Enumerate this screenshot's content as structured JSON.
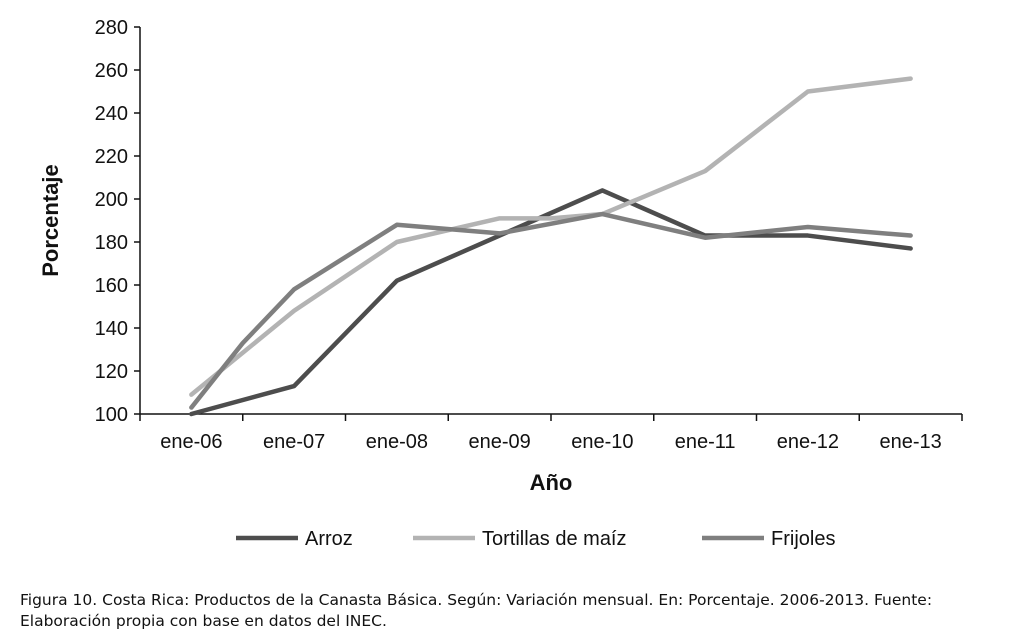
{
  "chart_data": {
    "type": "line",
    "title": "",
    "xlabel": "Año",
    "ylabel": "Porcentaje",
    "categories": [
      "ene-06",
      "ene-07",
      "ene-08",
      "ene-09",
      "ene-10",
      "ene-11",
      "ene-12",
      "ene-13"
    ],
    "ylim": [
      100,
      280
    ],
    "yticks": [
      100,
      120,
      140,
      160,
      180,
      200,
      220,
      240,
      260,
      280
    ],
    "grid": false,
    "legend_position": "bottom",
    "series": [
      {
        "name": "Arroz",
        "color": "#4d4d4d",
        "x": [
          0,
          1,
          2,
          3,
          4,
          5,
          6,
          7
        ],
        "values": [
          100,
          113,
          162,
          183,
          204,
          183,
          183,
          177
        ]
      },
      {
        "name": "Tortillas de maíz",
        "color": "#b3b3b3",
        "x": [
          0,
          1,
          2,
          3,
          3.5,
          4,
          4.5,
          5,
          6,
          7
        ],
        "values": [
          109,
          148,
          180,
          191,
          191,
          193,
          203,
          213,
          250,
          256
        ]
      },
      {
        "name": "Frijoles",
        "color": "#7f7f7f",
        "x": [
          0,
          0.5,
          1,
          2,
          3,
          4,
          5,
          6,
          7
        ],
        "values": [
          103,
          133,
          158,
          188,
          184,
          193,
          182,
          187,
          183
        ]
      }
    ]
  },
  "caption": {
    "line1": "Figura 10. Costa Rica: Productos de la Canasta Básica. Según: Variación mensual. En: Porcentaje. 2006-2013. Fuente:",
    "line2": "Elaboración propia con base en datos del INEC."
  }
}
